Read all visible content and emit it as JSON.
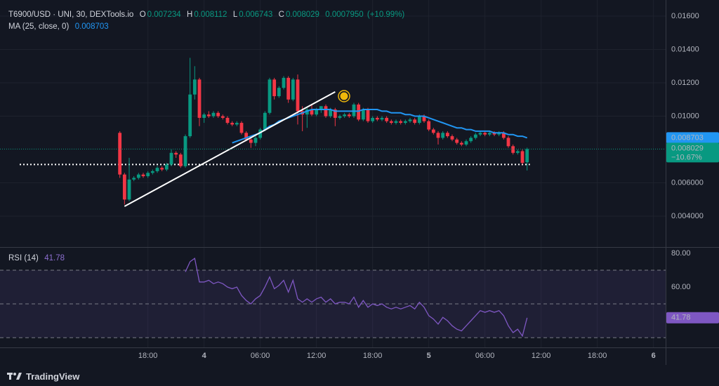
{
  "chart_data": [
    {
      "type": "candlestick",
      "title": "T6900/USD · UNI, 30, DEXTools.io",
      "ohlc_labels": [
        "O",
        "H",
        "L",
        "C"
      ],
      "change": {
        "value": 0.000795,
        "label": "0.0007950"
      },
      "change_percent": {
        "value": 10.99,
        "label": "(+10.99%)"
      },
      "last_change": {
        "value": -10.67,
        "label": "−10.67%"
      },
      "up_color": "#089981",
      "down_color": "#f23645",
      "x": [
        15,
        15.5,
        16,
        16.5,
        17,
        17.5,
        18,
        18.5,
        19,
        19.5,
        20,
        20.5,
        21,
        21.5,
        22,
        22.5,
        23,
        23.5,
        24,
        24.5,
        25,
        25.5,
        26,
        26.5,
        27,
        27.5,
        28,
        28.5,
        29,
        29.5,
        30,
        30.5,
        31,
        31.5,
        32,
        32.5,
        33,
        33.5,
        34,
        34.5,
        35,
        35.5,
        36,
        36.5,
        37,
        37.5,
        38,
        38.5,
        39,
        39.5,
        40,
        40.5,
        41,
        41.5,
        42,
        42.5,
        43,
        43.5,
        44,
        44.5,
        45,
        45.5,
        46,
        46.5,
        47,
        47.5,
        48,
        48.5,
        49,
        49.5,
        50,
        50.5,
        51,
        51.5,
        52,
        52.5,
        53,
        53.5,
        54,
        54.5,
        55,
        55.5,
        56,
        56.5,
        57,
        57.5,
        58,
        58.5
      ],
      "ohlc": [
        [
          0.009,
          0.0091,
          0.0063,
          0.0065
        ],
        [
          0.0065,
          0.0066,
          0.0047,
          0.005
        ],
        [
          0.005,
          0.0075,
          0.0049,
          0.0062
        ],
        [
          0.0062,
          0.0064,
          0.0061,
          0.0063
        ],
        [
          0.0063,
          0.0066,
          0.0062,
          0.0065
        ],
        [
          0.0065,
          0.0066,
          0.0063,
          0.0064
        ],
        [
          0.0064,
          0.0067,
          0.0063,
          0.0066
        ],
        [
          0.0066,
          0.0068,
          0.0065,
          0.0067
        ],
        [
          0.0067,
          0.007,
          0.0066,
          0.0069
        ],
        [
          0.0069,
          0.007,
          0.0067,
          0.0068
        ],
        [
          0.0068,
          0.0072,
          0.0067,
          0.0071
        ],
        [
          0.0071,
          0.008,
          0.007,
          0.0078
        ],
        [
          0.0078,
          0.0079,
          0.0075,
          0.0077
        ],
        [
          0.0077,
          0.0078,
          0.0069,
          0.007
        ],
        [
          0.007,
          0.0089,
          0.0069,
          0.0088
        ],
        [
          0.0088,
          0.0135,
          0.0087,
          0.0113
        ],
        [
          0.0113,
          0.013,
          0.011,
          0.0122
        ],
        [
          0.0122,
          0.0123,
          0.0094,
          0.0099
        ],
        [
          0.0099,
          0.0102,
          0.0096,
          0.0101
        ],
        [
          0.0101,
          0.0103,
          0.0099,
          0.01
        ],
        [
          0.01,
          0.0103,
          0.0099,
          0.0102
        ],
        [
          0.0102,
          0.0103,
          0.0099,
          0.01
        ],
        [
          0.01,
          0.0101,
          0.0098,
          0.0099
        ],
        [
          0.0099,
          0.01,
          0.0095,
          0.0096
        ],
        [
          0.0096,
          0.0097,
          0.0094,
          0.0095
        ],
        [
          0.0095,
          0.0097,
          0.0094,
          0.0096
        ],
        [
          0.0096,
          0.0097,
          0.0089,
          0.009
        ],
        [
          0.009,
          0.0091,
          0.0085,
          0.0086
        ],
        [
          0.0086,
          0.0087,
          0.0081,
          0.0084
        ],
        [
          0.0084,
          0.0088,
          0.0082,
          0.0087
        ],
        [
          0.0087,
          0.0093,
          0.0086,
          0.0092
        ],
        [
          0.0092,
          0.0103,
          0.0091,
          0.0102
        ],
        [
          0.0102,
          0.0123,
          0.0101,
          0.0122
        ],
        [
          0.0122,
          0.0123,
          0.011,
          0.0112
        ],
        [
          0.0112,
          0.0118,
          0.0111,
          0.0117
        ],
        [
          0.0117,
          0.0124,
          0.0116,
          0.0123
        ],
        [
          0.0123,
          0.0124,
          0.0108,
          0.011
        ],
        [
          0.011,
          0.0123,
          0.0109,
          0.0122
        ],
        [
          0.0122,
          0.0125,
          0.0095,
          0.0103
        ],
        [
          0.0103,
          0.0106,
          0.0091,
          0.0101
        ],
        [
          0.0101,
          0.0105,
          0.0093,
          0.0104
        ],
        [
          0.0104,
          0.0107,
          0.01,
          0.0101
        ],
        [
          0.0101,
          0.0105,
          0.01,
          0.0104
        ],
        [
          0.0104,
          0.0106,
          0.0102,
          0.0106
        ],
        [
          0.0106,
          0.0107,
          0.0099,
          0.01
        ],
        [
          0.01,
          0.0105,
          0.0099,
          0.0104
        ],
        [
          0.0104,
          0.0105,
          0.0094,
          0.0099
        ],
        [
          0.0099,
          0.0101,
          0.0098,
          0.01
        ],
        [
          0.01,
          0.0102,
          0.0099,
          0.0101
        ],
        [
          0.0101,
          0.0102,
          0.0099,
          0.01
        ],
        [
          0.01,
          0.0108,
          0.0099,
          0.0107
        ],
        [
          0.0107,
          0.0108,
          0.0097,
          0.0098
        ],
        [
          0.0098,
          0.0105,
          0.0097,
          0.0104
        ],
        [
          0.0104,
          0.0105,
          0.0096,
          0.0097
        ],
        [
          0.0097,
          0.01,
          0.0096,
          0.0099
        ],
        [
          0.0099,
          0.01,
          0.0097,
          0.0098
        ],
        [
          0.0098,
          0.01,
          0.0097,
          0.0099
        ],
        [
          0.0099,
          0.01,
          0.0096,
          0.0097
        ],
        [
          0.0097,
          0.0098,
          0.0095,
          0.0096
        ],
        [
          0.0096,
          0.0098,
          0.0095,
          0.0097
        ],
        [
          0.0097,
          0.0098,
          0.0095,
          0.0096
        ],
        [
          0.0096,
          0.0098,
          0.0095,
          0.0097
        ],
        [
          0.0097,
          0.0099,
          0.0096,
          0.0098
        ],
        [
          0.0098,
          0.0099,
          0.0095,
          0.0096
        ],
        [
          0.0096,
          0.0101,
          0.0095,
          0.01
        ],
        [
          0.01,
          0.0101,
          0.0096,
          0.0097
        ],
        [
          0.0097,
          0.0098,
          0.0091,
          0.0092
        ],
        [
          0.0092,
          0.0093,
          0.0089,
          0.009
        ],
        [
          0.009,
          0.0091,
          0.0083,
          0.0087
        ],
        [
          0.0087,
          0.0091,
          0.0086,
          0.009
        ],
        [
          0.009,
          0.0091,
          0.0087,
          0.0088
        ],
        [
          0.0088,
          0.0089,
          0.0085,
          0.0086
        ],
        [
          0.0086,
          0.0087,
          0.0083,
          0.0084
        ],
        [
          0.0084,
          0.0085,
          0.0082,
          0.0083
        ],
        [
          0.0083,
          0.0086,
          0.0082,
          0.0085
        ],
        [
          0.0085,
          0.0088,
          0.0084,
          0.0087
        ],
        [
          0.0087,
          0.009,
          0.0086,
          0.0089
        ],
        [
          0.0089,
          0.0091,
          0.0088,
          0.009
        ],
        [
          0.009,
          0.0091,
          0.0088,
          0.0089
        ],
        [
          0.0089,
          0.0091,
          0.0088,
          0.009
        ],
        [
          0.009,
          0.0091,
          0.0088,
          0.0089
        ],
        [
          0.0089,
          0.0091,
          0.0088,
          0.009
        ],
        [
          0.009,
          0.0091,
          0.0086,
          0.0087
        ],
        [
          0.0087,
          0.0088,
          0.0081,
          0.0082
        ],
        [
          0.0082,
          0.0083,
          0.0077,
          0.0078
        ],
        [
          0.0078,
          0.008,
          0.0077,
          0.0079
        ],
        [
          0.0079,
          0.008,
          0.0071,
          0.0072
        ],
        [
          0.007234,
          0.008112,
          0.006743,
          0.008029
        ]
      ],
      "series": [
        {
          "name": "MA (25, close, 0)",
          "color": "#2196f3",
          "values": [
            null,
            null,
            null,
            null,
            null,
            null,
            null,
            null,
            null,
            null,
            null,
            null,
            null,
            null,
            null,
            null,
            null,
            null,
            null,
            null,
            null,
            null,
            null,
            null,
            0.0084,
            0.0085,
            0.0086,
            0.0087,
            0.0088,
            0.0089,
            0.009,
            0.0092,
            0.0094,
            0.0095,
            0.0097,
            0.0098,
            0.0099,
            0.01,
            0.0101,
            0.0102,
            0.0103,
            0.0104,
            0.0104,
            0.0104,
            0.0104,
            0.0104,
            0.0103,
            0.0103,
            0.0103,
            0.0103,
            0.0103,
            0.0103,
            0.0104,
            0.0104,
            0.0104,
            0.0104,
            0.0103,
            0.0103,
            0.0102,
            0.0102,
            0.0102,
            0.0101,
            0.0101,
            0.01,
            0.01,
            0.01,
            0.0099,
            0.0098,
            0.0097,
            0.0096,
            0.0095,
            0.0094,
            0.0093,
            0.0093,
            0.0092,
            0.0092,
            0.0091,
            0.0091,
            0.0091,
            0.0091,
            0.009,
            0.009,
            0.009,
            0.0089,
            0.0089,
            0.0088,
            0.0088,
            0.008703
          ]
        }
      ],
      "drawings": {
        "trend_line": {
          "x": [
            15.5,
            38
          ],
          "y": [
            0.00459,
            0.01146
          ]
        },
        "horizontal_line": {
          "x": [
            4.3,
            58.8
          ],
          "value": 0.0071
        }
      },
      "xlim": [
        2.2,
        73.3
      ],
      "ylim": [
        0.00215,
        0.01697
      ],
      "xticks": [
        {
          "value": 18,
          "label": "18:00"
        },
        {
          "value": 24,
          "label": "4"
        },
        {
          "value": 30,
          "label": "06:00"
        },
        {
          "value": 36,
          "label": "12:00"
        },
        {
          "value": 42,
          "label": "18:00"
        },
        {
          "value": 48,
          "label": "5"
        },
        {
          "value": 54,
          "label": "06:00"
        },
        {
          "value": 60,
          "label": "12:00"
        },
        {
          "value": 66,
          "label": "18:00"
        },
        {
          "value": 72,
          "label": "6"
        }
      ],
      "yticks": [
        {
          "value": 0.016,
          "label": "0.01600"
        },
        {
          "value": 0.014,
          "label": "0.01400"
        },
        {
          "value": 0.012,
          "label": "0.01200"
        },
        {
          "value": 0.01,
          "label": "0.01000"
        },
        {
          "value": 0.006,
          "label": "0.006000"
        },
        {
          "value": 0.004,
          "label": "0.004000"
        }
      ],
      "grid": true
    },
    {
      "type": "line",
      "title": "RSI (14)",
      "x": [
        22,
        22.5,
        23,
        23.5,
        24,
        24.5,
        25,
        25.5,
        26,
        26.5,
        27,
        27.5,
        28,
        28.5,
        29,
        29.5,
        30,
        30.5,
        31,
        31.5,
        32,
        32.5,
        33,
        33.5,
        34,
        34.5,
        35,
        35.5,
        36,
        36.5,
        37,
        37.5,
        38,
        38.5,
        39,
        39.5,
        40,
        40.5,
        41,
        41.5,
        42,
        42.5,
        43,
        43.5,
        44,
        44.5,
        45,
        45.5,
        46,
        46.5,
        47,
        47.5,
        48,
        48.5,
        49,
        49.5,
        50,
        50.5,
        51,
        51.5,
        52,
        52.5,
        53,
        53.5,
        54,
        54.5,
        55,
        55.5,
        56,
        56.5,
        57,
        57.5,
        58,
        58.5
      ],
      "series": [
        {
          "name": "RSI (14)",
          "color": "#7e57c2",
          "values": [
            69,
            75,
            77,
            63,
            63,
            64,
            62,
            63,
            62,
            60,
            59,
            60,
            55,
            52,
            50,
            53,
            55,
            60,
            66,
            59,
            61,
            64,
            57,
            64,
            53,
            51,
            53,
            51,
            53,
            54,
            51,
            53,
            50,
            51,
            51,
            50,
            54,
            48,
            52,
            48,
            50,
            49,
            50,
            48,
            47,
            48,
            47,
            48,
            49,
            47,
            51,
            48,
            43,
            41,
            38,
            42,
            40,
            37,
            35,
            34,
            37,
            40,
            43,
            46,
            45,
            46,
            45,
            46,
            43,
            37,
            33,
            35,
            31,
            41.78
          ]
        }
      ],
      "levels": [
        70,
        50,
        30
      ],
      "xlim": [
        2.2,
        73.3
      ],
      "ylim": [
        24.2,
        83.3
      ],
      "yticks": [
        {
          "value": 80,
          "label": "80.00"
        },
        {
          "value": 60,
          "label": "60.00"
        }
      ]
    }
  ],
  "footer": "TradingView"
}
